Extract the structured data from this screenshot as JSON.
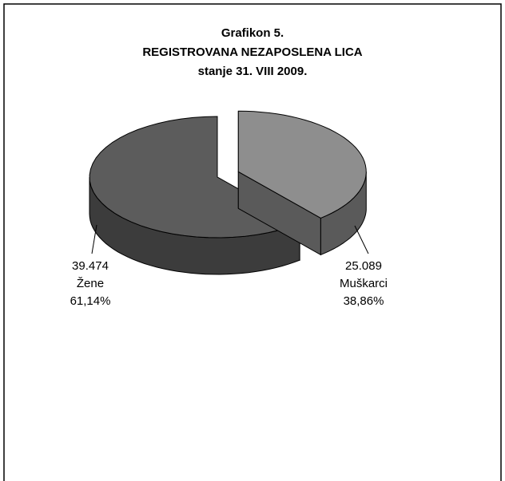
{
  "chart_data": {
    "type": "pie3d",
    "title": [
      "Grafikon 5.",
      "REGISTROVANA NEZAPOSLENA LICA",
      "stanje 31. VIII 2009."
    ],
    "categories": [
      "Žene",
      "Muškarci"
    ],
    "values": [
      39474,
      25089
    ],
    "value_labels": [
      "39.474",
      "25.089"
    ],
    "percentages": [
      61.14,
      38.86
    ],
    "percentage_labels": [
      "61,14%",
      "38,86%"
    ],
    "colors": [
      "#5c5c5c",
      "#8e8e8e"
    ],
    "side_colors": [
      "#3c3c3c",
      "#5a5a5a"
    ]
  }
}
